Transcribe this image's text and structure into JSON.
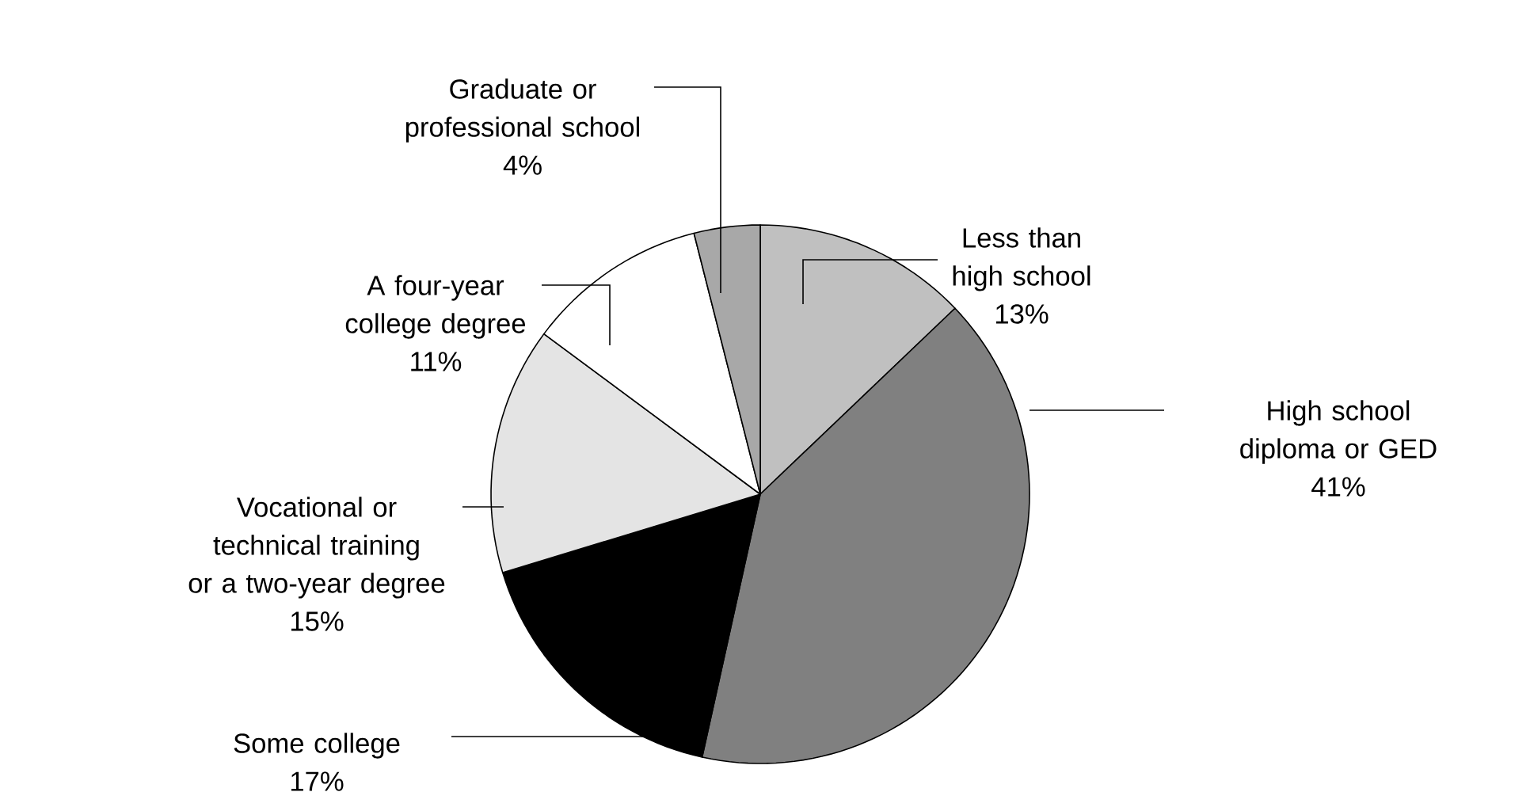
{
  "chart_data": {
    "type": "pie",
    "categories": [
      "Less than high school",
      "High school diploma or GED",
      "Some college",
      "Vocational or technical training or a two-year degree",
      "A four-year college degree",
      "Graduate or professional school"
    ],
    "values": [
      13,
      41,
      17,
      15,
      11,
      4
    ],
    "value_labels": [
      "13%",
      "41%",
      "17%",
      "15%",
      "11%",
      "4%"
    ],
    "colors": [
      "#c0c0c0",
      "#808080",
      "#000000",
      "#e4e4e4",
      "#ffffff",
      "#a8a8a8"
    ]
  }
}
